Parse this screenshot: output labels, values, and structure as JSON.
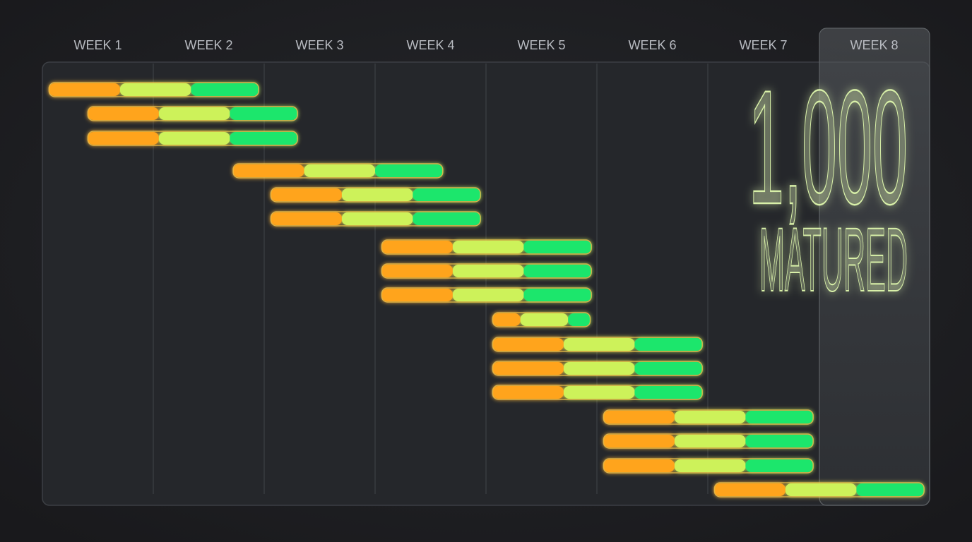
{
  "chart_data": {
    "type": "gantt",
    "categories": [
      "WEEK 1",
      "WEEK 2",
      "WEEK 3",
      "WEEK 4",
      "WEEK 5",
      "WEEK 6",
      "WEEK 7",
      "WEEK 8"
    ],
    "xlim": [
      0,
      8
    ],
    "phase_colors": [
      "#ffa41b",
      "#cdf25a",
      "#1fe66c"
    ],
    "tasks": [
      {
        "start": 0.06,
        "phases": [
          0.64,
          0.64,
          0.61
        ]
      },
      {
        "start": 0.41,
        "phases": [
          0.64,
          0.64,
          0.61
        ]
      },
      {
        "start": 0.41,
        "phases": [
          0.64,
          0.64,
          0.61
        ]
      },
      {
        "start": 1.72,
        "phases": [
          0.64,
          0.64,
          0.61
        ]
      },
      {
        "start": 2.06,
        "phases": [
          0.64,
          0.64,
          0.61
        ]
      },
      {
        "start": 2.06,
        "phases": [
          0.64,
          0.64,
          0.61
        ]
      },
      {
        "start": 3.06,
        "phases": [
          0.64,
          0.64,
          0.61
        ]
      },
      {
        "start": 3.06,
        "phases": [
          0.64,
          0.64,
          0.61
        ]
      },
      {
        "start": 3.06,
        "phases": [
          0.64,
          0.64,
          0.61
        ]
      },
      {
        "start": 4.06,
        "phases": [
          0.25,
          0.43,
          0.2
        ]
      },
      {
        "start": 4.06,
        "phases": [
          0.64,
          0.64,
          0.61
        ]
      },
      {
        "start": 4.06,
        "phases": [
          0.64,
          0.64,
          0.61
        ]
      },
      {
        "start": 4.06,
        "phases": [
          0.64,
          0.64,
          0.61
        ]
      },
      {
        "start": 5.06,
        "phases": [
          0.64,
          0.64,
          0.61
        ]
      },
      {
        "start": 5.06,
        "phases": [
          0.64,
          0.64,
          0.61
        ]
      },
      {
        "start": 5.06,
        "phases": [
          0.64,
          0.64,
          0.61
        ]
      },
      {
        "start": 6.06,
        "phases": [
          0.64,
          0.64,
          0.61
        ]
      }
    ],
    "big_number": "1,000",
    "big_label": "MATURED"
  }
}
